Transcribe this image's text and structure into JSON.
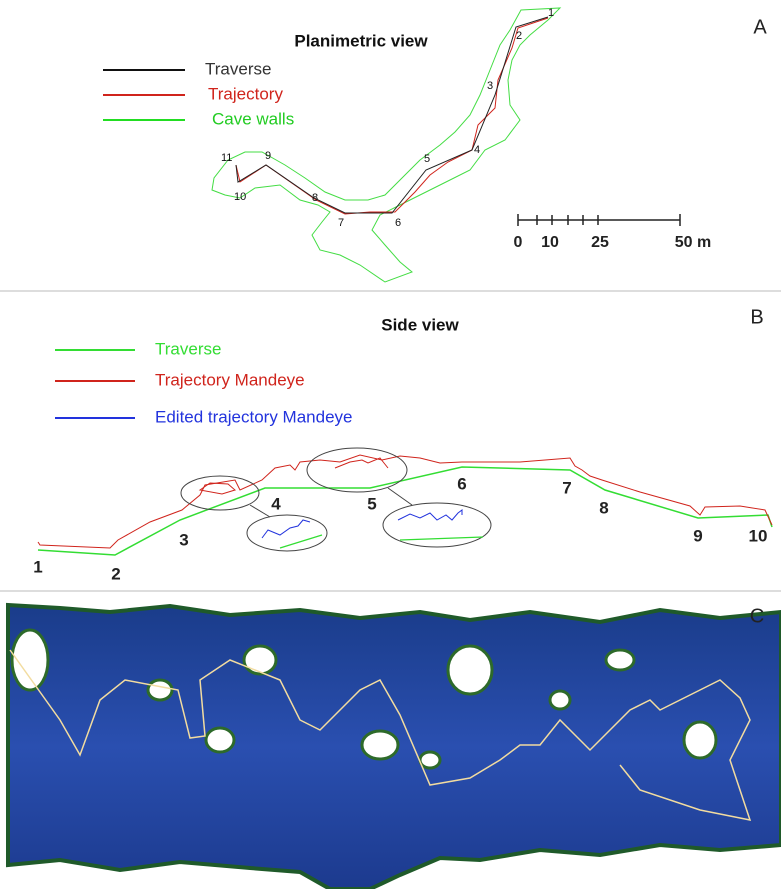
{
  "panel_a": {
    "label": "A",
    "title": "Planimetric view",
    "legend": [
      "Traverse",
      "Trajectory",
      "Cave walls"
    ],
    "stations": [
      "1",
      "2",
      "3",
      "4",
      "5",
      "6",
      "7",
      "8",
      "9",
      "10",
      "11"
    ],
    "scale_labels": [
      "0",
      "10",
      "25",
      "50 m"
    ]
  },
  "panel_b": {
    "label": "B",
    "title": "Side view",
    "legend": [
      "Traverse",
      "Trajectory Mandeye",
      "Edited trajectory Mandeye"
    ],
    "stations": [
      "1",
      "2",
      "3",
      "4",
      "5",
      "6",
      "7",
      "8",
      "9",
      "10"
    ]
  },
  "panel_c": {
    "label": "C"
  }
}
